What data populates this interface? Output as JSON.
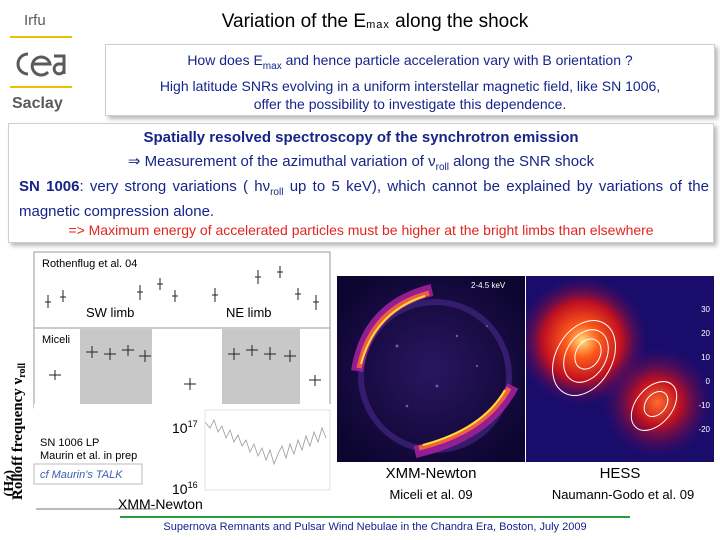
{
  "header": {
    "org": "Irfu",
    "lab": "Saclay",
    "logo_name": "cea-logo",
    "title_pre": "Variation of the E",
    "title_sub": "max",
    "title_post": " along the shock"
  },
  "question_box": {
    "question_pre": "How does E",
    "question_sub": "max",
    "question_post": " and hence particle acceleration vary with B orientation ?",
    "text_line1": "High latitude SNRs evolving in a uniform interstellar magnetic field, like SN 1006,",
    "text_line2": "offer the possibility to investigate this dependence."
  },
  "spectroscopy_box": {
    "title": "Spatially resolved spectroscopy of the synchrotron emission",
    "measure_pre": "⇒ Measurement of the azimuthal variation of ν",
    "measure_sub": "roll",
    "measure_post": " along the SNR shock",
    "sn_name": "SN 1006",
    "sn_pre": ": very strong variations ( hν",
    "sn_sub": "roll",
    "sn_post": " up to 5 keV), which cannot be explained by variations of the magnetic compression alone.",
    "conclusion": "=> Maximum energy of accelerated particles must be higher at the bright limbs than elsewhere"
  },
  "figure_left": {
    "ref_top": "Rothenflug et al. 04",
    "ref_mid": "Miceli",
    "sw_limb": "SW limb",
    "ne_limb": "NE limb",
    "legend_line1": "SN 1006 LP",
    "legend_line2": "Maurin et al. in prep",
    "talk": "cf Maurin's TALK",
    "y_label": "Rolloff frequency ν",
    "y_label_sub": "roll",
    "y_unit": "(Hz)",
    "tick_top_base": "10",
    "tick_top_exp": "17",
    "tick_bottom_base": "10",
    "tick_bottom_exp": "16",
    "instrument": "XMM-Newton"
  },
  "figure_xmm": {
    "energy_band": "2-4.5 keV",
    "caption": "XMM-Newton",
    "reference": "Miceli et al. 09"
  },
  "figure_hess": {
    "ticks": [
      "30",
      "20",
      "10",
      "0",
      "-10",
      "-20"
    ],
    "caption": "HESS",
    "reference": "Naumann-Godo et al. 09"
  },
  "footer": {
    "text": "Supernova Remnants and Pulsar Wind Nebulae in the Chandra Era, Boston, July 2009"
  },
  "colors": {
    "accent_blue": "#16248a",
    "alert_red": "#e3241f",
    "footer_green": "#2a9c3a",
    "logo_yellow": "#e8c200"
  }
}
